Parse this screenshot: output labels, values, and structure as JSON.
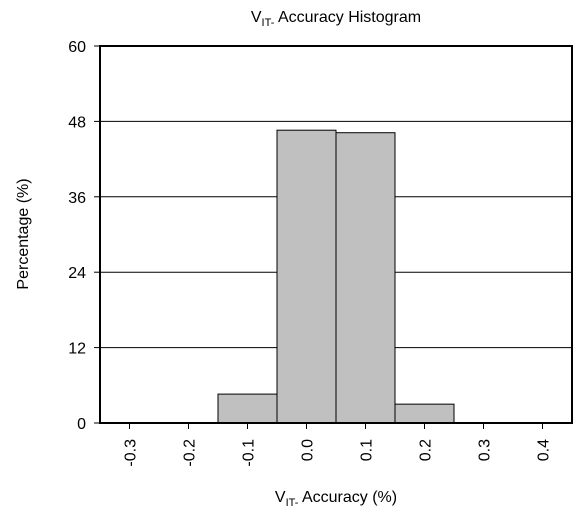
{
  "chart_data": {
    "type": "histogram",
    "title": {
      "main": "V",
      "sub": "IT-",
      "rest": " Accuracy Histogram"
    },
    "xlabel": {
      "main": "V",
      "sub": "IT-",
      "rest": " Accuracy (%)"
    },
    "ylabel": "Percentage (%)",
    "bins": [
      -0.35,
      -0.25,
      -0.15,
      -0.05,
      0.05,
      0.15,
      0.25,
      0.35,
      0.45
    ],
    "values": [
      0,
      0,
      4.6,
      46.6,
      46.2,
      3.0,
      0,
      0
    ],
    "color": "#c0c0c0",
    "xlim": [
      -0.35,
      0.45
    ],
    "xticks": [
      -0.3,
      -0.2,
      -0.1,
      {
        "value": 0,
        "label": "0.0"
      },
      0.1,
      0.2,
      0.3,
      0.4
    ],
    "ylim": [
      0,
      60
    ],
    "yticks": [
      0,
      12,
      24,
      36,
      48,
      60
    ],
    "grid": true
  }
}
